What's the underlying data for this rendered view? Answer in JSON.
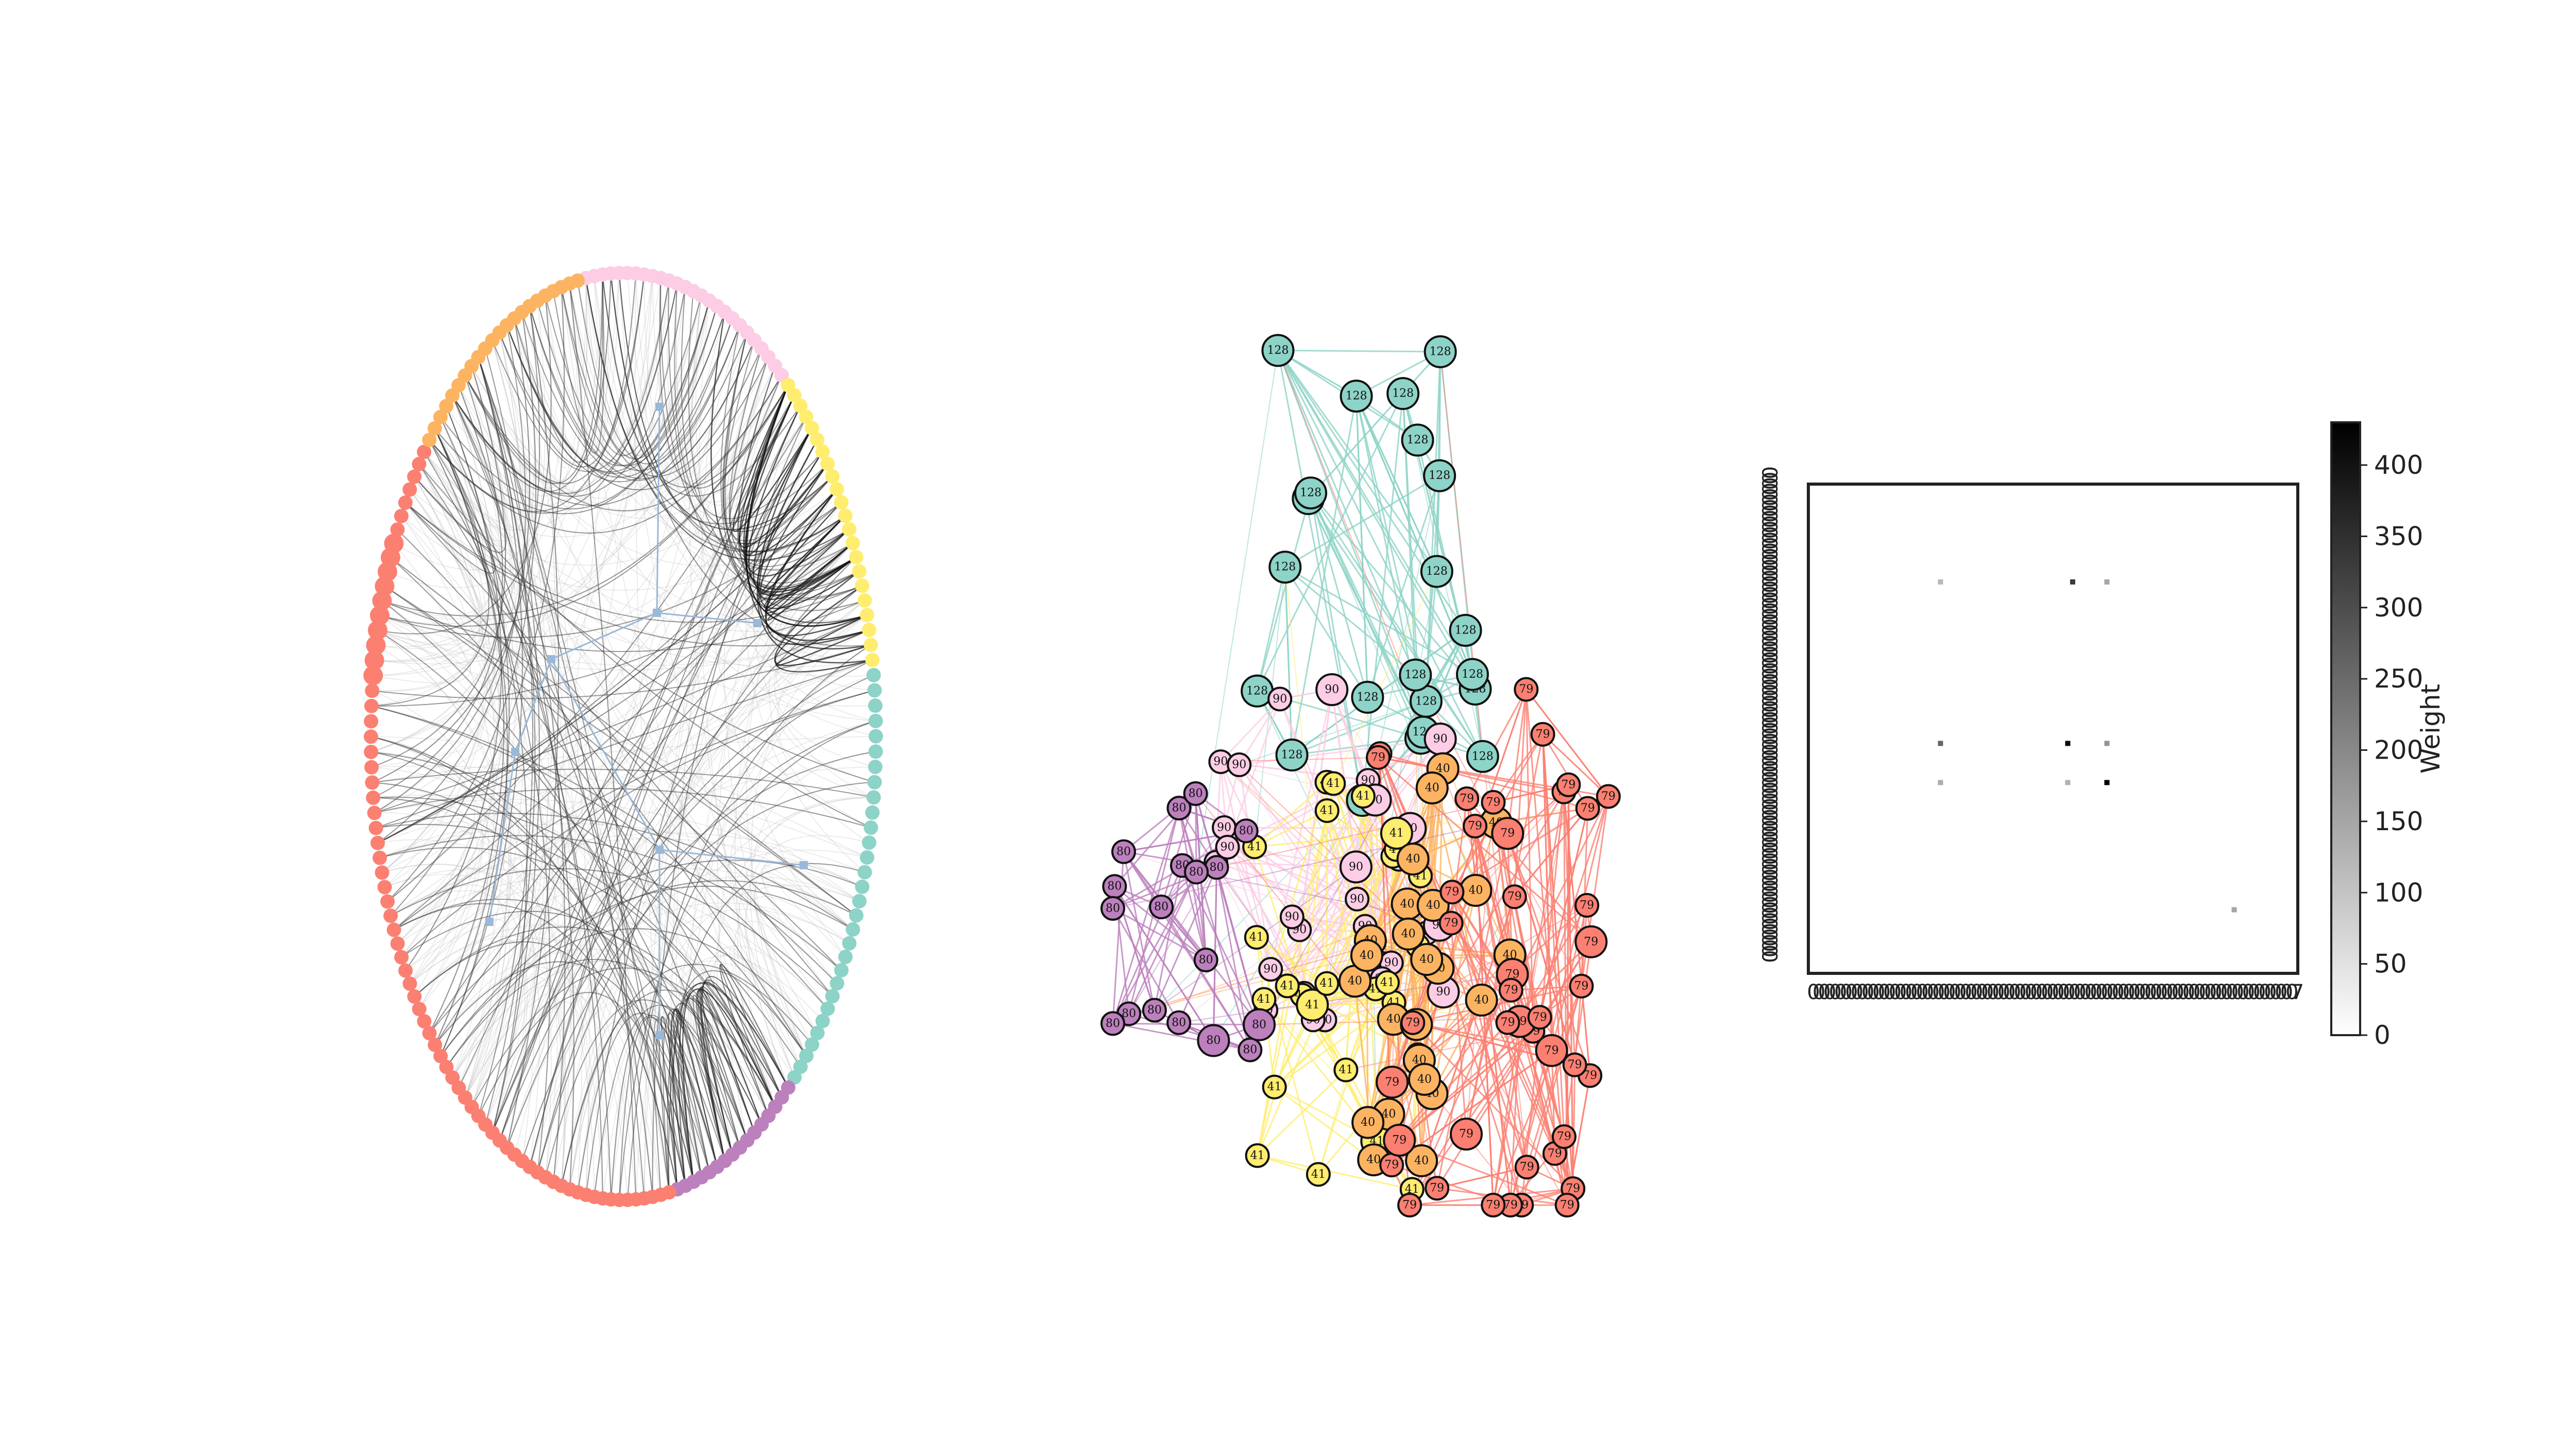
{
  "figure": {
    "panel_count": 3
  },
  "palette": {
    "teal": "#8dd3c7",
    "yellow": "#ffed6f",
    "pink": "#fccde5",
    "orange": "#fdb462",
    "salmon": "#fb8072",
    "purple": "#bc80bd",
    "edge_dark": "#333333",
    "edge_light": "#bbbbbb",
    "bundle_blue": "#9ab8d8"
  },
  "circular_layout": {
    "groups": [
      {
        "color": "pink",
        "count": 26
      },
      {
        "color": "yellow",
        "count": 22
      },
      {
        "color": "teal",
        "count": 30
      },
      {
        "color": "purple",
        "count": 16
      },
      {
        "color": "salmon",
        "count": 74
      },
      {
        "color": "orange",
        "count": 22
      }
    ]
  },
  "network": {
    "communities": [
      {
        "label": "128",
        "color": "teal",
        "count": 22
      },
      {
        "label": "90",
        "color": "pink",
        "count": 28
      },
      {
        "label": "41",
        "color": "yellow",
        "count": 26
      },
      {
        "label": "40",
        "color": "orange",
        "count": 24
      },
      {
        "label": "79",
        "color": "salmon",
        "count": 42
      },
      {
        "label": "80",
        "color": "purple",
        "count": 18
      }
    ]
  },
  "matrix": {
    "colorbar_label": "Weight",
    "colorbar_ticks": [
      "0",
      "50",
      "100",
      "150",
      "200",
      "250",
      "300",
      "350",
      "400"
    ],
    "max_value": 430,
    "bright_cells": [
      {
        "row": 0.2,
        "col": 0.27,
        "value": 120
      },
      {
        "row": 0.2,
        "col": 0.54,
        "value": 330
      },
      {
        "row": 0.2,
        "col": 0.61,
        "value": 150
      },
      {
        "row": 0.53,
        "col": 0.27,
        "value": 260
      },
      {
        "row": 0.53,
        "col": 0.53,
        "value": 410
      },
      {
        "row": 0.53,
        "col": 0.61,
        "value": 180
      },
      {
        "row": 0.61,
        "col": 0.27,
        "value": 140
      },
      {
        "row": 0.61,
        "col": 0.53,
        "value": 130
      },
      {
        "row": 0.61,
        "col": 0.61,
        "value": 430
      },
      {
        "row": 0.87,
        "col": 0.87,
        "value": 150
      }
    ],
    "y_tick_label": "0",
    "x_tick_label_first": "0",
    "x_tick_label_last": "7"
  }
}
